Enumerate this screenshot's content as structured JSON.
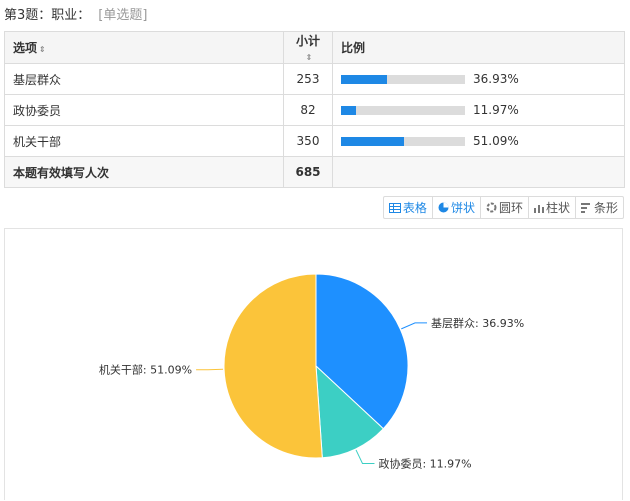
{
  "question": {
    "title": "第3题：职业：",
    "type": "[单选题]"
  },
  "table": {
    "headers": {
      "option": "选项",
      "count": "小计",
      "ratio": "比例"
    },
    "rows": [
      {
        "option": "基层群众",
        "count": "253",
        "percent": "36.93%",
        "fraction": 0.3693
      },
      {
        "option": "政协委员",
        "count": "82",
        "percent": "11.97%",
        "fraction": 0.1197
      },
      {
        "option": "机关干部",
        "count": "350",
        "percent": "51.09%",
        "fraction": 0.5109
      }
    ],
    "total": {
      "label": "本题有效填写人次",
      "count": "685"
    }
  },
  "toolbar": {
    "buttons": [
      {
        "label": "表格",
        "icon": "table-icon",
        "active": true
      },
      {
        "label": "饼状",
        "icon": "pie-icon",
        "active": true
      },
      {
        "label": "圆环",
        "icon": "donut-icon",
        "active": false
      },
      {
        "label": "柱状",
        "icon": "bar-chart-icon",
        "active": false
      },
      {
        "label": "条形",
        "icon": "horizontal-bar-icon",
        "active": false
      }
    ]
  },
  "colors": {
    "accent": "#1e88e5",
    "slice1": "#1e90ff",
    "slice2": "#3ccfc4",
    "slice3": "#fbc43a"
  },
  "chart_data": {
    "type": "pie",
    "categories": [
      "基层群众",
      "政协委员",
      "机关干部"
    ],
    "values": [
      36.93,
      11.97,
      51.09
    ],
    "labels": [
      "基层群众: 36.93%",
      "政协委员: 11.97%",
      "机关干部: 51.09%"
    ],
    "colors": [
      "#1e90ff",
      "#3ccfc4",
      "#fbc43a"
    ]
  }
}
